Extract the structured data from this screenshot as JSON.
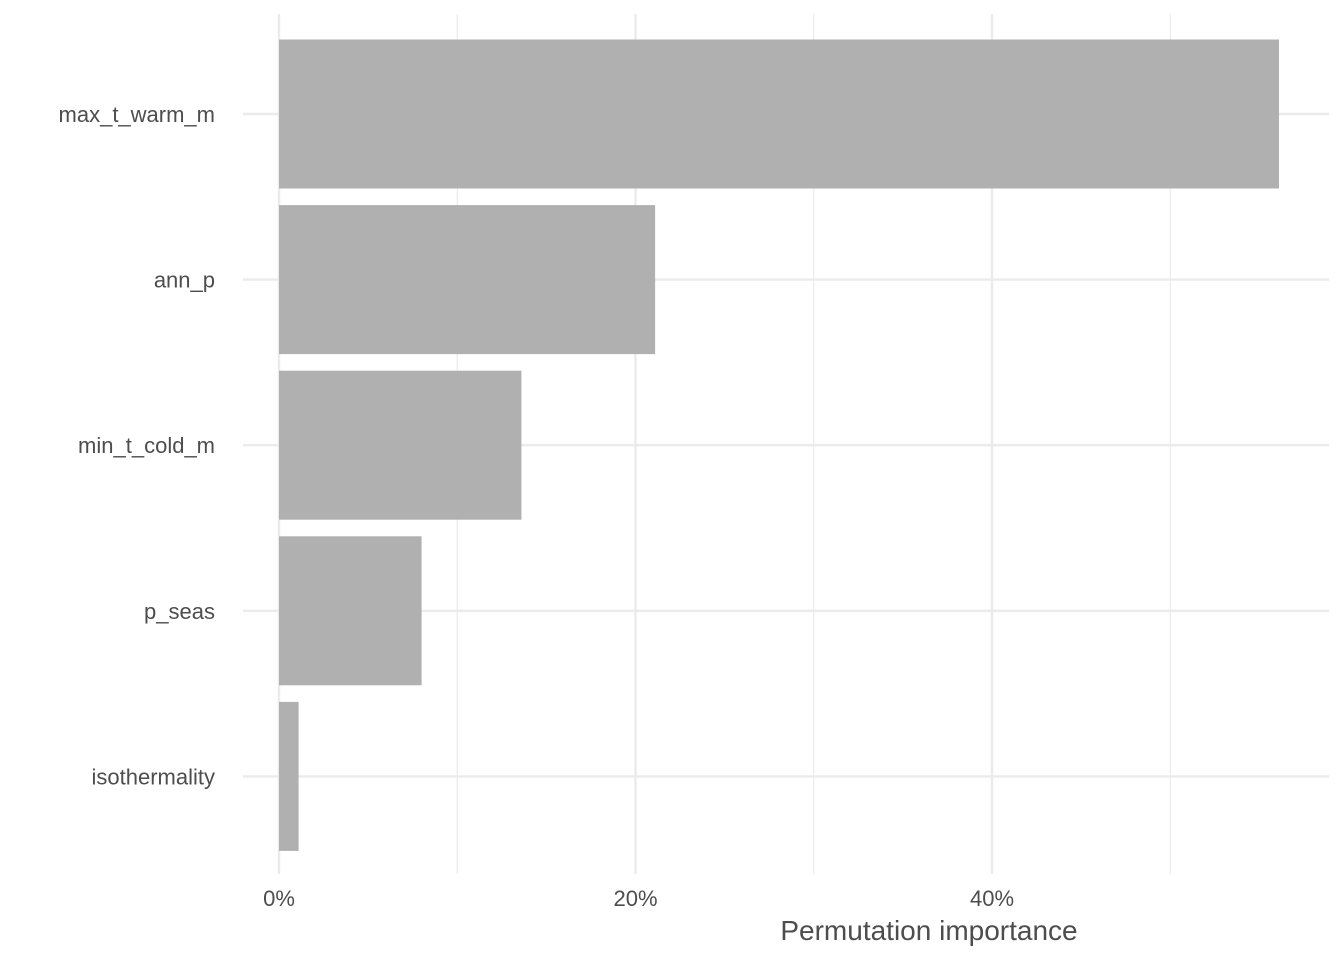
{
  "chart_data": {
    "type": "bar",
    "orientation": "horizontal",
    "categories": [
      "max_t_warm_m",
      "ann_p",
      "min_t_cold_m",
      "p_seas",
      "isothermality"
    ],
    "values": [
      56.1,
      21.1,
      13.6,
      8.0,
      1.1
    ],
    "value_unit": "%",
    "xlabel": "Permutation importance",
    "ylabel": "",
    "xlim": [
      0,
      59
    ],
    "x_ticks": [
      0,
      20,
      40
    ],
    "x_tick_labels": [
      "0%",
      "20%",
      "40%"
    ],
    "x_minor_ticks": [
      10,
      30,
      50
    ],
    "bar_color": "#b0b0b0",
    "grid": true,
    "legend": "none"
  }
}
